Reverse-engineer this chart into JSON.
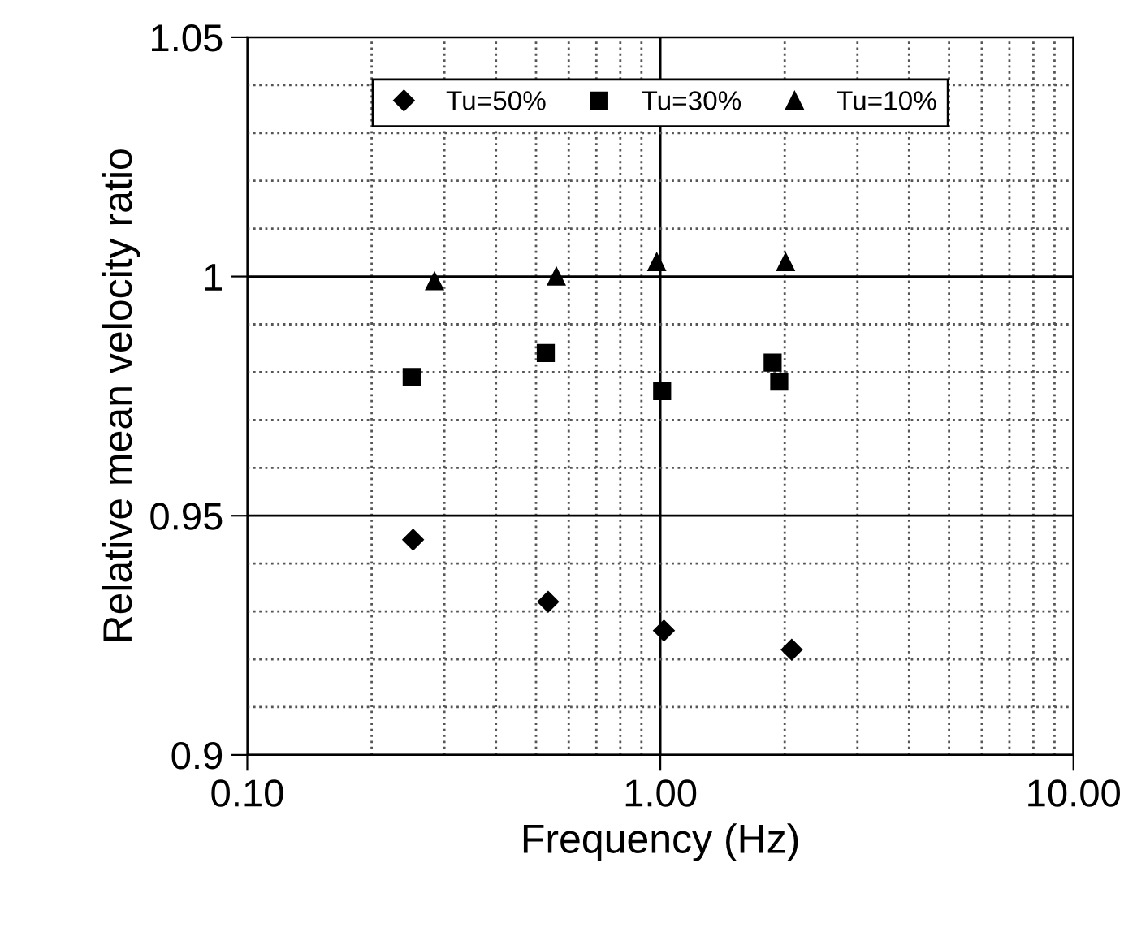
{
  "chart_data": {
    "type": "scatter",
    "xlabel": "Frequency (Hz)",
    "ylabel": "Relative mean velocity ratio",
    "log": "x",
    "grid": true,
    "legend": "top",
    "xlim": [
      0.1,
      10
    ],
    "xticks": [
      {
        "value": 0.1,
        "label": "0.10"
      },
      {
        "value": 1,
        "label": "1.00"
      },
      {
        "value": 10,
        "label": "10.00"
      }
    ],
    "ylim": [
      0.9,
      1.05
    ],
    "yticks": [
      0.9,
      0.95,
      1,
      1.05
    ],
    "series": [
      {
        "name": "Tu=50%",
        "color": "#000000",
        "marker": "diamond",
        "x": [
          0.252,
          0.535,
          1.02,
          2.08
        ],
        "values": [
          0.945,
          0.932,
          0.926,
          0.922
        ]
      },
      {
        "name": "Tu=30%",
        "color": "#000000",
        "marker": "square",
        "x": [
          0.25,
          0.528,
          1.01,
          1.87,
          1.94
        ],
        "values": [
          0.979,
          0.984,
          0.976,
          0.982,
          0.978
        ]
      },
      {
        "name": "Tu=10%",
        "color": "#000000",
        "marker": "triangle",
        "x": [
          0.284,
          0.56,
          0.98,
          2.01
        ],
        "values": [
          0.999,
          1.0,
          1.003,
          1.003
        ]
      }
    ]
  }
}
